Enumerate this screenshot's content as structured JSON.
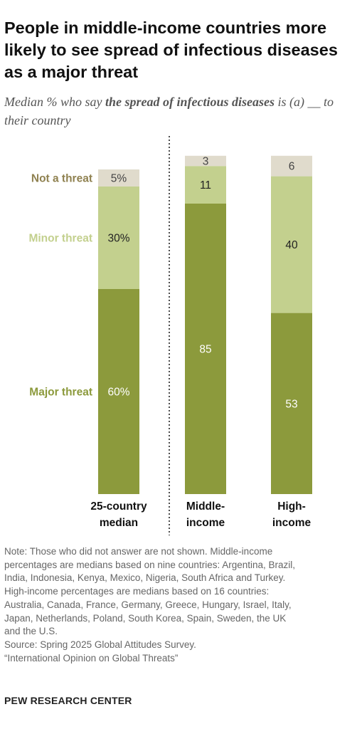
{
  "title": "People in middle-income countries more likely to see spread of infectious diseases as a major threat",
  "subtitle": {
    "pre": "Median % who say ",
    "emph": "the spread of infectious diseases",
    "post": " is (a) __ to their country"
  },
  "colors": {
    "major": "#8c9a3c",
    "minor": "#c3d08e",
    "not": "#e0dbcc",
    "label_major": "#8c9a3c",
    "label_minor": "#c3d08e",
    "label_not": "#8f8150"
  },
  "chart_data": {
    "type": "bar",
    "stacked": true,
    "categories": [
      "25-country median",
      "Middle-income",
      "High-income"
    ],
    "series": [
      {
        "name": "Major threat",
        "values": [
          60,
          85,
          53
        ],
        "labels": [
          "60%",
          "85",
          "53"
        ]
      },
      {
        "name": "Minor threat",
        "values": [
          30,
          11,
          40
        ],
        "labels": [
          "30%",
          "11",
          "40"
        ]
      },
      {
        "name": "Not a threat",
        "values": [
          5,
          3,
          6
        ],
        "labels": [
          "5%",
          "3",
          "6"
        ]
      }
    ],
    "category_lines": [
      [
        "25-country",
        "median"
      ],
      [
        "Middle-",
        "income"
      ],
      [
        "High-",
        "income"
      ]
    ],
    "ylim": [
      0,
      100
    ],
    "grid": false,
    "legend": "left"
  },
  "note_lines": [
    "Note: Those who did not answer are not shown. Middle-income",
    "percentages are medians based on nine countries: Argentina, Brazil,",
    "India, Indonesia, Kenya, Mexico, Nigeria, South Africa and Turkey.",
    "High-income percentages are medians based on 16 countries:",
    "Australia, Canada, France, Germany, Greece, Hungary, Israel, Italy,",
    "Japan, Netherlands, Poland, South Korea, Spain, Sweden, the UK",
    "and the U.S.",
    "Source: Spring 2025 Global Attitudes Survey.",
    "“International Opinion on Global Threats”"
  ],
  "brand": "PEW RESEARCH CENTER"
}
